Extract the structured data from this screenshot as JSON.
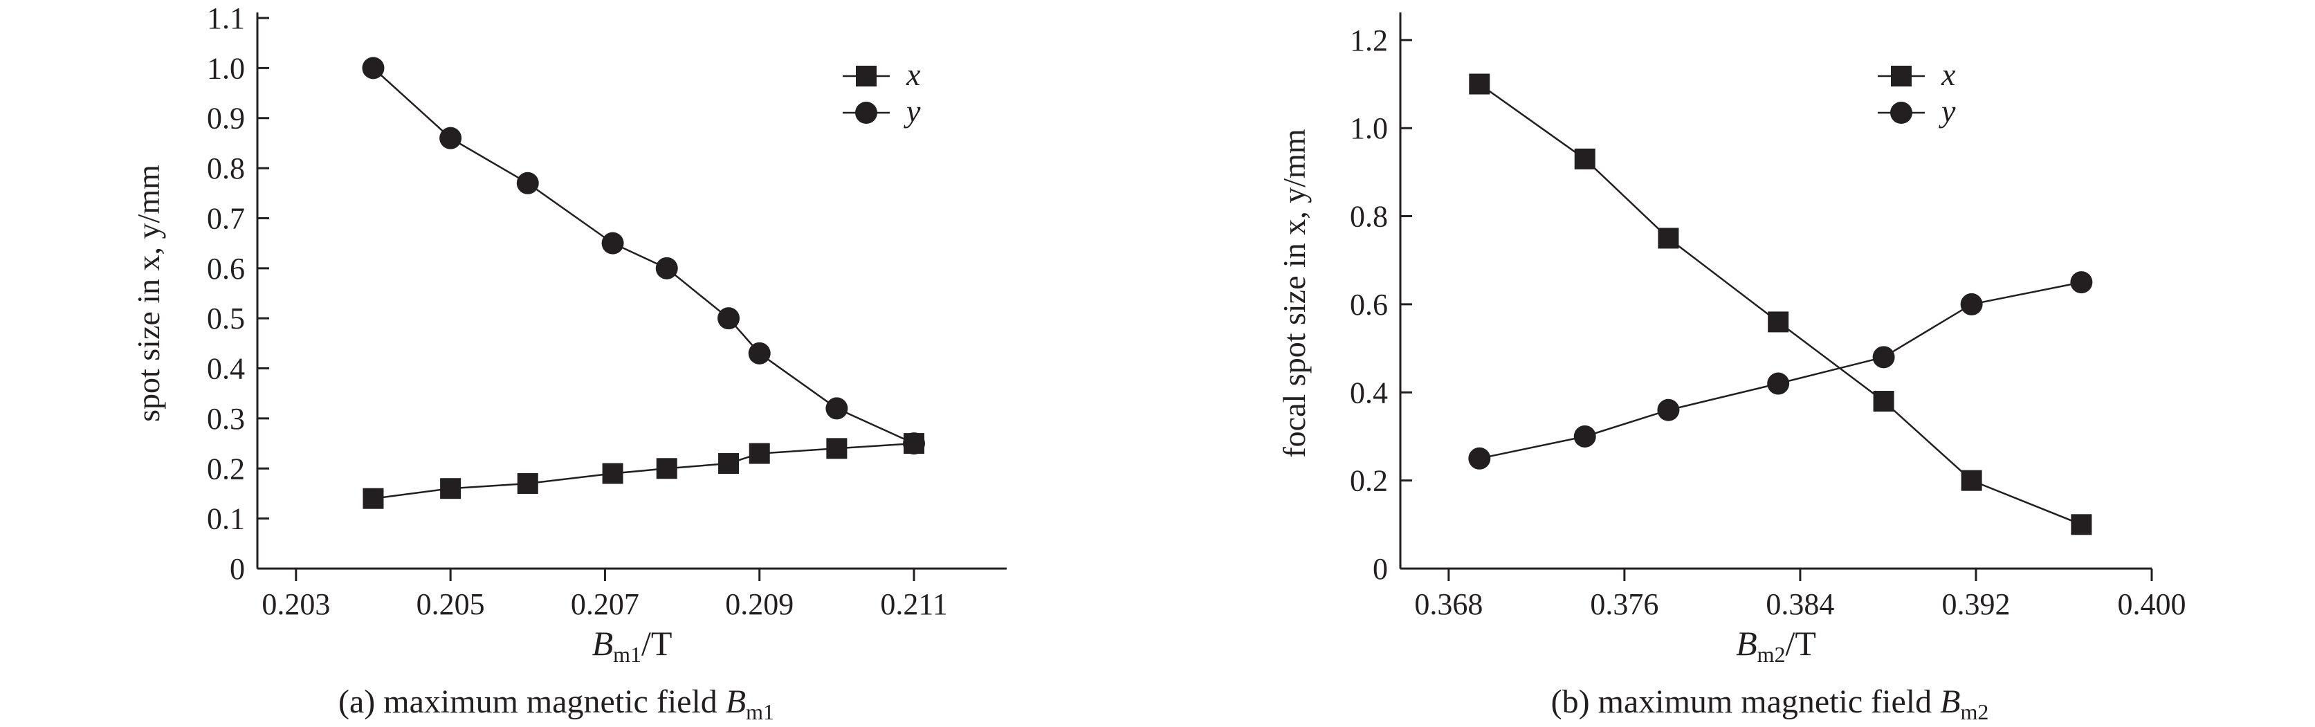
{
  "chart_data": [
    {
      "type": "line",
      "xlabel": {
        "main": "B",
        "sub": "m1",
        "tail": "/T"
      },
      "ylabel": "spot size in x, y/mm",
      "caption": {
        "prefix": "(a) maximum magnetic field ",
        "main": "B",
        "sub": "m1"
      },
      "xlim": [
        0.2025,
        0.2122
      ],
      "ylim": [
        0,
        1.1
      ],
      "x_ticks": [
        0.203,
        0.205,
        0.207,
        0.209,
        0.211
      ],
      "x_tick_labels": [
        "0.203",
        "0.205",
        "0.207",
        "0.209",
        "0.211"
      ],
      "y_ticks": [
        0,
        0.1,
        0.2,
        0.3,
        0.4,
        0.5,
        0.6,
        0.7,
        0.8,
        0.9,
        1.0,
        1.1
      ],
      "y_tick_labels": [
        "0",
        "0.1",
        "0.2",
        "0.3",
        "0.4",
        "0.5",
        "0.6",
        "0.7",
        "0.8",
        "0.9",
        "1.0",
        "1.1"
      ],
      "grid": false,
      "legend": "top-right",
      "series": [
        {
          "name": "x",
          "marker": "square",
          "x": [
            0.204,
            0.205,
            0.206,
            0.2071,
            0.2078,
            0.2086,
            0.209,
            0.21,
            0.211
          ],
          "values": [
            0.14,
            0.16,
            0.17,
            0.19,
            0.2,
            0.21,
            0.23,
            0.24,
            0.25
          ]
        },
        {
          "name": "y",
          "marker": "circle",
          "x": [
            0.204,
            0.205,
            0.206,
            0.2071,
            0.2078,
            0.2086,
            0.209,
            0.21,
            0.211
          ],
          "values": [
            1.0,
            0.86,
            0.77,
            0.65,
            0.6,
            0.5,
            0.43,
            0.32,
            0.25
          ]
        }
      ]
    },
    {
      "type": "line",
      "xlabel": {
        "main": "B",
        "sub": "m2",
        "tail": "/T"
      },
      "ylabel": "focal spot size in x, y/mm",
      "caption": {
        "prefix": "(b) maximum magnetic field ",
        "main": "B",
        "sub": "m2"
      },
      "xlim": [
        0.3658,
        0.4
      ],
      "ylim": [
        0,
        1.25
      ],
      "x_ticks": [
        0.368,
        0.376,
        0.384,
        0.392,
        0.4
      ],
      "x_tick_labels": [
        "0.368",
        "0.376",
        "0.384",
        "0.392",
        "0.400"
      ],
      "y_ticks": [
        0,
        0.2,
        0.4,
        0.6,
        0.8,
        1.0,
        1.2
      ],
      "y_tick_labels": [
        "0",
        "0.2",
        "0.4",
        "0.6",
        "0.8",
        "1.0",
        "1.2"
      ],
      "grid": false,
      "legend": "top-right",
      "series": [
        {
          "name": "x",
          "marker": "square",
          "x": [
            0.3694,
            0.3742,
            0.378,
            0.383,
            0.3878,
            0.3918,
            0.3968
          ],
          "values": [
            1.1,
            0.93,
            0.75,
            0.56,
            0.38,
            0.2,
            0.1
          ]
        },
        {
          "name": "y",
          "marker": "circle",
          "x": [
            0.3694,
            0.3742,
            0.378,
            0.383,
            0.3878,
            0.3918,
            0.3968
          ],
          "values": [
            0.25,
            0.3,
            0.36,
            0.42,
            0.48,
            0.6,
            0.65
          ]
        }
      ]
    }
  ]
}
